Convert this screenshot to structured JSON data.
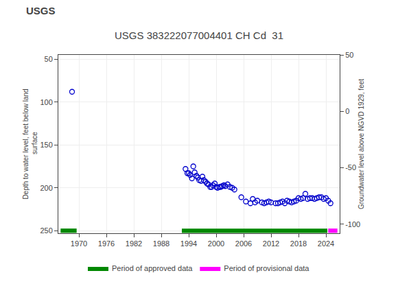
{
  "chart_data": {
    "type": "scatter",
    "title": "USGS 383222077004401 CH Cd  31",
    "annotations": [
      "USGS"
    ],
    "ylabel": "Depth to water level, feet below land\n surface",
    "y2label": "Groundwater level above NGVD 1929, feet",
    "xlim": [
      1965.5,
      2027.0
    ],
    "xticks": [
      1970,
      1976,
      1982,
      1988,
      1994,
      2000,
      2006,
      2012,
      2018,
      2024
    ],
    "ylim": [
      253,
      45
    ],
    "yticks": [
      50,
      100,
      150,
      200,
      250
    ],
    "y2lim": [
      -108,
      50
    ],
    "y2ticks": [
      50,
      0,
      -50,
      -100
    ],
    "grid": true,
    "legend": "bottom",
    "series": [
      {
        "type": "scatter",
        "color": "#0000cc",
        "marker": "open circle",
        "x": [
          1968.5,
          1993.3,
          1993.7,
          1994.0,
          1994.3,
          1994.7,
          1995.0,
          1995.3,
          1995.7,
          1996.0,
          1996.3,
          1996.7,
          1997.0,
          1997.3,
          1997.7,
          1998.0,
          1998.3,
          1998.7,
          1999.0,
          1999.3,
          1999.7,
          2000.0,
          2000.3,
          2000.7,
          2001.0,
          2001.3,
          2001.7,
          2002.0,
          2002.5,
          2003.0,
          2003.5,
          2004.0,
          2005.5,
          2006.5,
          2007.5,
          2008.0,
          2008.5,
          2009.0,
          2010.0,
          2010.5,
          2011.0,
          2011.5,
          2012.0,
          2013.0,
          2013.5,
          2014.0,
          2014.5,
          2015.0,
          2015.5,
          2016.0,
          2016.5,
          2017.0,
          2017.5,
          2018.0,
          2018.5,
          2019.0,
          2019.5,
          2020.0,
          2020.5,
          2021.0,
          2021.5,
          2022.0,
          2022.5,
          2023.0,
          2023.5,
          2024.0,
          2024.5,
          2025.0
        ],
        "values": [
          88,
          178,
          183,
          183,
          185,
          189,
          175,
          182,
          186,
          188,
          191,
          192,
          187,
          191,
          193,
          195,
          196,
          199,
          199,
          197,
          195,
          199,
          200,
          199,
          199,
          198,
          197,
          198,
          196,
          199,
          200,
          202,
          211,
          216,
          218,
          213,
          217,
          215,
          217,
          218,
          217,
          216,
          217,
          218,
          218,
          217,
          216,
          218,
          215,
          216,
          217,
          216,
          215,
          212,
          213,
          212,
          207,
          213,
          212,
          212,
          213,
          212,
          211,
          211,
          213,
          212,
          215,
          218
        ]
      },
      {
        "type": "period",
        "name": "Period of approved data",
        "color": "#008800",
        "ranges": [
          [
            1966.0,
            1969.5
          ],
          [
            1992.5,
            2024.3
          ]
        ],
        "y": 250,
        "half_height": 2.5
      },
      {
        "type": "period",
        "name": "Period of provisional data",
        "color": "#ff00ff",
        "ranges": [
          [
            2024.5,
            2026.5
          ]
        ],
        "y": 250,
        "half_height": 2.5
      }
    ]
  }
}
